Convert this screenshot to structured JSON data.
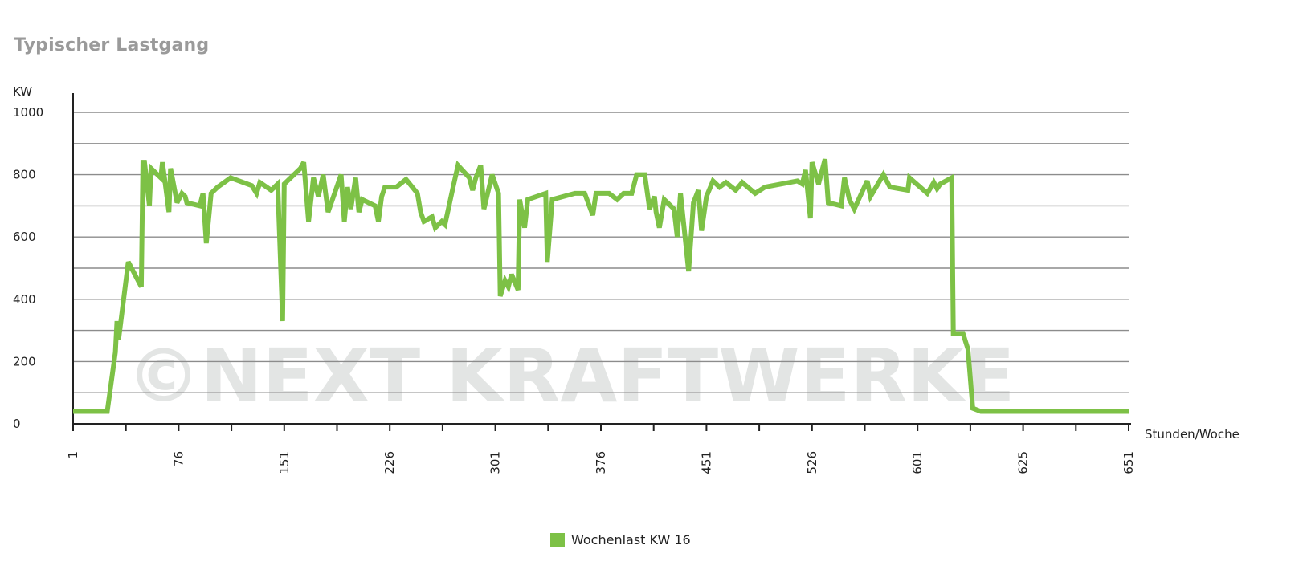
{
  "title": "Typischer Lastgang",
  "watermark": "©NEXT KRAFTWERKE",
  "colors": {
    "line": "#7dc146",
    "grid": "#8c8c8c",
    "axis": "#222222",
    "watermark": "#e3e5e4"
  },
  "chart_data": {
    "type": "line",
    "title": "Typischer Lastgang",
    "ylabel": "KW",
    "xlabel": "Stunden/Woche",
    "ylim": [
      0,
      1000
    ],
    "yticks": [
      "0",
      "200",
      "400",
      "600",
      "800",
      "1000"
    ],
    "xticks": [
      "1",
      "76",
      "151",
      "226",
      "301",
      "376",
      "451",
      "526",
      "601",
      "625",
      "651"
    ],
    "grid": true,
    "legend_position": "bottom",
    "series": [
      {
        "name": "Wochenlast KW 16",
        "points": [
          [
            1,
            40
          ],
          [
            22,
            40
          ],
          [
            27,
            230
          ],
          [
            28,
            330
          ],
          [
            29,
            270
          ],
          [
            35,
            520
          ],
          [
            43,
            440
          ],
          [
            44,
            840
          ],
          [
            45,
            840
          ],
          [
            48,
            700
          ],
          [
            49,
            820
          ],
          [
            55,
            790
          ],
          [
            56,
            840
          ],
          [
            60,
            680
          ],
          [
            61,
            820
          ],
          [
            65,
            710
          ],
          [
            68,
            740
          ],
          [
            70,
            730
          ],
          [
            71,
            710
          ],
          [
            79,
            700
          ],
          [
            81,
            740
          ],
          [
            83,
            580
          ],
          [
            86,
            740
          ],
          [
            90,
            760
          ],
          [
            98,
            790
          ],
          [
            111,
            765
          ],
          [
            114,
            740
          ],
          [
            116,
            775
          ],
          [
            123,
            750
          ],
          [
            127,
            770
          ],
          [
            130,
            330
          ],
          [
            131,
            770
          ],
          [
            141,
            820
          ],
          [
            143,
            840
          ],
          [
            146,
            650
          ],
          [
            149,
            790
          ],
          [
            152,
            730
          ],
          [
            155,
            800
          ],
          [
            158,
            680
          ],
          [
            166,
            800
          ],
          [
            168,
            650
          ],
          [
            170,
            760
          ],
          [
            172,
            690
          ],
          [
            175,
            790
          ],
          [
            177,
            680
          ],
          [
            179,
            720
          ],
          [
            187,
            700
          ],
          [
            189,
            650
          ],
          [
            191,
            730
          ],
          [
            193,
            760
          ],
          [
            200,
            760
          ],
          [
            206,
            785
          ],
          [
            213,
            740
          ],
          [
            215,
            680
          ],
          [
            217,
            650
          ],
          [
            222,
            665
          ],
          [
            224,
            630
          ],
          [
            228,
            650
          ],
          [
            230,
            640
          ],
          [
            235,
            760
          ],
          [
            238,
            830
          ],
          [
            245,
            790
          ],
          [
            247,
            750
          ],
          [
            249,
            790
          ],
          [
            252,
            830
          ],
          [
            254,
            690
          ],
          [
            259,
            800
          ],
          [
            263,
            740
          ],
          [
            264,
            410
          ],
          [
            267,
            460
          ],
          [
            269,
            440
          ],
          [
            271,
            480
          ],
          [
            275,
            430
          ],
          [
            276,
            720
          ],
          [
            279,
            630
          ],
          [
            281,
            720
          ],
          [
            292,
            740
          ],
          [
            293,
            520
          ],
          [
            296,
            720
          ],
          [
            310,
            740
          ],
          [
            316,
            740
          ],
          [
            321,
            670
          ],
          [
            323,
            740
          ],
          [
            331,
            740
          ],
          [
            336,
            720
          ],
          [
            340,
            740
          ],
          [
            345,
            740
          ],
          [
            348,
            800
          ],
          [
            353,
            800
          ],
          [
            356,
            690
          ],
          [
            359,
            730
          ],
          [
            360,
            680
          ],
          [
            362,
            630
          ],
          [
            365,
            720
          ],
          [
            371,
            690
          ],
          [
            373,
            600
          ],
          [
            375,
            740
          ],
          [
            380,
            490
          ],
          [
            383,
            710
          ],
          [
            386,
            750
          ],
          [
            388,
            620
          ],
          [
            391,
            730
          ],
          [
            395,
            780
          ],
          [
            399,
            760
          ],
          [
            403,
            775
          ],
          [
            409,
            750
          ],
          [
            413,
            775
          ],
          [
            421,
            740
          ],
          [
            427,
            760
          ],
          [
            447,
            780
          ],
          [
            450,
            770
          ],
          [
            452,
            815
          ],
          [
            455,
            660
          ],
          [
            456,
            840
          ],
          [
            460,
            770
          ],
          [
            464,
            850
          ],
          [
            466,
            710
          ],
          [
            474,
            700
          ],
          [
            476,
            790
          ],
          [
            479,
            720
          ],
          [
            482,
            690
          ],
          [
            490,
            780
          ],
          [
            492,
            730
          ],
          [
            500,
            800
          ],
          [
            504,
            760
          ],
          [
            515,
            750
          ],
          [
            516,
            790
          ],
          [
            527,
            740
          ],
          [
            531,
            775
          ],
          [
            533,
            755
          ],
          [
            535,
            770
          ],
          [
            542,
            790
          ],
          [
            543,
            290
          ],
          [
            549,
            290
          ],
          [
            552,
            240
          ],
          [
            555,
            50
          ],
          [
            560,
            40
          ],
          [
            651,
            40
          ]
        ]
      }
    ]
  },
  "legend": {
    "label": "Wochenlast KW 16"
  }
}
